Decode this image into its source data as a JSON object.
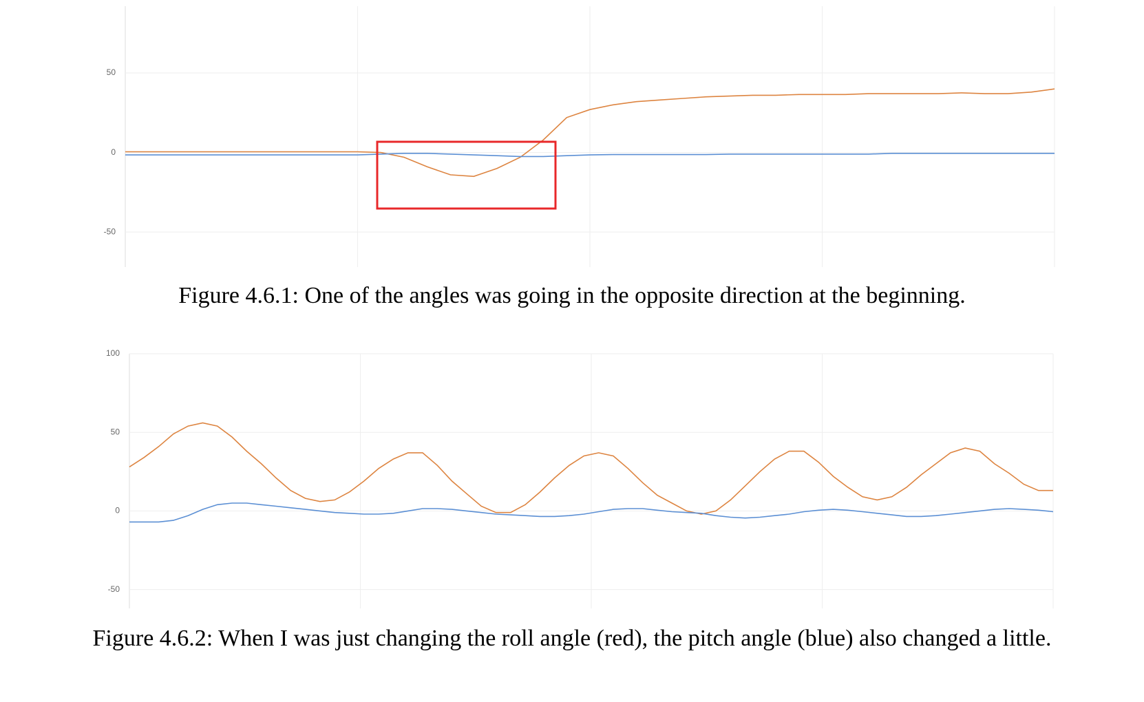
{
  "chart_data": [
    {
      "type": "line",
      "ylim": [
        -72,
        92
      ],
      "yticks": [
        -50,
        0,
        50
      ],
      "grid": true,
      "series": [
        {
          "color": "#dd8440",
          "values": [
            0.5,
            0.5,
            0.5,
            0.5,
            0.5,
            0.5,
            0.5,
            0.5,
            0.5,
            0.5,
            0.5,
            0,
            -3,
            -9,
            -14,
            -15,
            -10,
            -3,
            8,
            22,
            27,
            30,
            32,
            33,
            34,
            35,
            35.5,
            36,
            36,
            36.5,
            36.5,
            36.5,
            37,
            37,
            37,
            37,
            37.5,
            37,
            37,
            38,
            40
          ]
        },
        {
          "color": "#5b8fd4",
          "values": [
            -1.5,
            -1.5,
            -1.5,
            -1.5,
            -1.5,
            -1.5,
            -1.5,
            -1.5,
            -1.5,
            -1.5,
            -1.5,
            -1,
            -0.5,
            -0.5,
            -1,
            -1.5,
            -2,
            -2.5,
            -2.5,
            -2,
            -1.5,
            -1.3,
            -1.3,
            -1.3,
            -1.3,
            -1.3,
            -1,
            -1,
            -1,
            -1,
            -1,
            -1,
            -1,
            -0.5,
            -0.5,
            -0.5,
            -0.5,
            -0.5,
            -0.5,
            -0.5,
            -0.5
          ]
        }
      ],
      "caption": "Figure 4.6.1: One of the angles was going in the opposite direction at the beginning."
    },
    {
      "type": "line",
      "ylim": [
        -62,
        100
      ],
      "yticks": [
        -50,
        0,
        50,
        100
      ],
      "grid": true,
      "series": [
        {
          "color": "#dd8440",
          "values": [
            28,
            34,
            41,
            49,
            54,
            56,
            54,
            47,
            38,
            30,
            21,
            13,
            8,
            6,
            7,
            12,
            19,
            27,
            33,
            37,
            37,
            29,
            19,
            11,
            3,
            -1,
            -1,
            4,
            12,
            21,
            29,
            35,
            37,
            35,
            27,
            18,
            10,
            5,
            0,
            -2,
            0,
            7,
            16,
            25,
            33,
            38,
            38,
            31,
            22,
            15,
            9,
            7,
            9,
            15,
            23,
            30,
            37,
            40,
            38,
            30,
            24,
            17,
            13,
            13
          ]
        },
        {
          "color": "#5b8fd4",
          "values": [
            -7,
            -7,
            -7,
            -6,
            -3,
            1,
            4,
            5,
            5,
            4,
            3,
            2,
            1,
            0,
            -1,
            -1.5,
            -2,
            -2,
            -1.5,
            0,
            1.5,
            1.5,
            1,
            0,
            -1,
            -2,
            -2.5,
            -3,
            -3.5,
            -3.5,
            -3,
            -2,
            -0.5,
            1,
            1.5,
            1.5,
            0.5,
            -0.5,
            -1,
            -1.5,
            -3,
            -4,
            -4.5,
            -4,
            -3,
            -2,
            -0.5,
            0.5,
            1,
            0.5,
            -0.5,
            -1.5,
            -2.5,
            -3.5,
            -3.5,
            -3,
            -2,
            -1,
            0,
            1,
            1.5,
            1,
            0.5,
            -0.5
          ]
        }
      ],
      "caption": "Figure 4.6.2: When I was just changing the roll angle (red), the pitch angle (blue) also changed a little."
    }
  ]
}
